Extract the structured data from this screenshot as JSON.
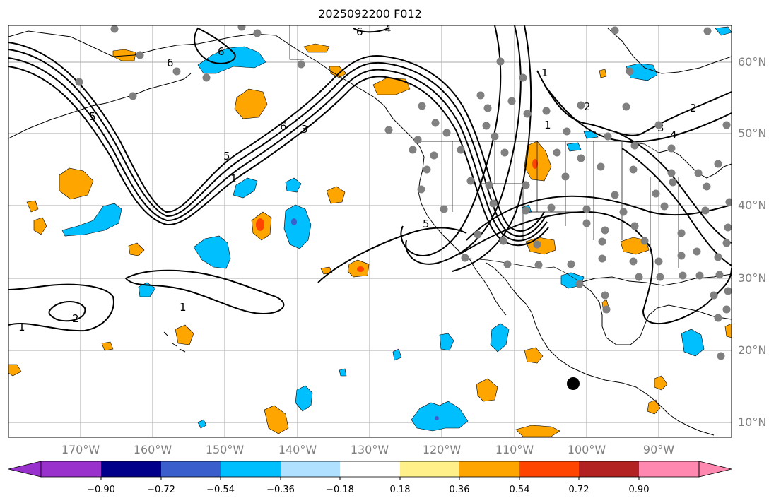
{
  "title": "2025092200 F012",
  "longitude_labels": [
    "170°W",
    "160°W",
    "150°W",
    "140°W",
    "130°W",
    "120°W",
    "110°W",
    "100°W",
    "90°W"
  ],
  "latitude_labels": [
    "60°N",
    "50°N",
    "40°N",
    "30°N",
    "20°N",
    "10°N"
  ],
  "colorbar": {
    "ticks": [
      "−0.90",
      "−0.72",
      "−0.54",
      "−0.36",
      "−0.18",
      "0.18",
      "0.36",
      "0.54",
      "0.72",
      "0.90"
    ],
    "colors": [
      "#9932cc",
      "#00008b",
      "#3a5fcd",
      "#00bfff",
      "#b0e2ff",
      "#ffffff",
      "#fff08a",
      "#ffa500",
      "#ff4500",
      "#b22222",
      "#ff88b0"
    ]
  },
  "contour_labels": [
    "1",
    "2",
    "3",
    "4",
    "5",
    "6"
  ],
  "colors": {
    "positive_fill": "#ffa500",
    "strong_positive_fill": "#ff4500",
    "negative_fill": "#00bfff",
    "strong_negative_fill": "#3a5fcd",
    "station_marker": "#808080",
    "grid": "#a9a9a9"
  }
}
